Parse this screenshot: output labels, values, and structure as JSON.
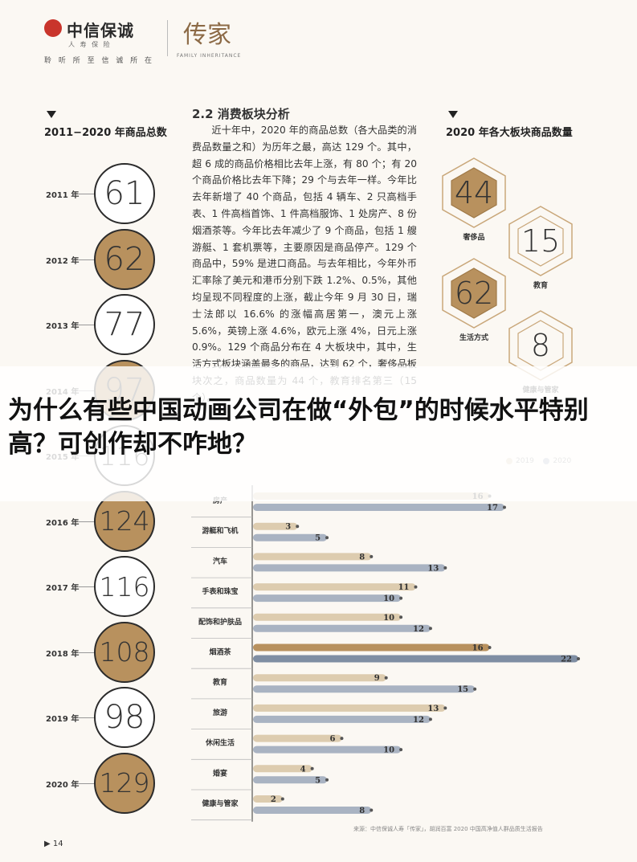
{
  "header": {
    "logo_name": "中信保诚",
    "logo_sub": "人 寿 保 险",
    "slogan": "聆 听 所 至   信 诚 所 在",
    "brand": "传家",
    "brand_sub": "FAMILY INHERITANCE"
  },
  "left_panel": {
    "title": "2011−2020 年商品总数",
    "years": [
      {
        "year": "2011 年",
        "value": "61",
        "gold": false
      },
      {
        "year": "2012 年",
        "value": "62",
        "gold": true
      },
      {
        "year": "2013 年",
        "value": "77",
        "gold": false
      },
      {
        "year": "2014 年",
        "value": "97",
        "gold": true
      },
      {
        "year": "2015 年",
        "value": "116",
        "gold": false
      },
      {
        "year": "2016 年",
        "value": "124",
        "gold": true
      },
      {
        "year": "2017 年",
        "value": "116",
        "gold": false
      },
      {
        "year": "2018 年",
        "value": "108",
        "gold": true
      },
      {
        "year": "2019 年",
        "value": "98",
        "gold": false
      },
      {
        "year": "2020 年",
        "value": "129",
        "gold": true
      }
    ]
  },
  "middle": {
    "section_title": "2.2 消费板块分析",
    "paragraph": "近十年中，2020 年的商品总数（各大品类的消费品数量之和）为历年之最，高达 129 个。其中，超 6 成的商品价格相比去年上涨，有 80 个；有 20 个商品价格比去年下降；29 个与去年一样。今年比去年新增了 40 个商品，包括 4 辆车、2 只高档手表、1 件高档首饰、1 件高档服饰、1 处房产、8 份烟酒茶等。今年比去年减少了 9 个商品，包括 1 艘游艇、1 套机票等，主要原因是商品停产。129 个商品中，59% 是进口商品。与去年相比，今年外币汇率除了美元和港币分别下跌 1.2%、0.5%，其他均呈现不同程度的上涨，截止今年 9 月 30 日，瑞士法郎以 16.6% 的涨幅高居第一，澳元上涨 5.6%，英镑上涨 4.6%，欧元上涨 4%，日元上涨 0.9%。129 个商品分布在 4 大板块中，其中，生活方式板块涵盖最多的商品，达到 62 个，奢侈品板块次之，商品数量为 44 个，教育排名第三（15 个）。"
  },
  "right_panel": {
    "title": "2020 年各大板块商品数量",
    "sectors": [
      {
        "value": "44",
        "label": "奢侈品",
        "gold": true
      },
      {
        "value": "15",
        "label": "教育",
        "gold": false
      },
      {
        "value": "62",
        "label": "生活方式",
        "gold": true
      },
      {
        "value": "8",
        "label": "健康与管家",
        "gold": false
      }
    ]
  },
  "overlay": {
    "headline": "为什么有些中国动画公司在做“外包”的时候水平特别高？可创作却不咋地？"
  },
  "chart_data": {
    "type": "bar",
    "title": "",
    "categories": [
      "房产",
      "游艇和飞机",
      "汽车",
      "手表和珠宝",
      "配饰和护肤品",
      "烟酒茶",
      "教育",
      "旅游",
      "休闲生活",
      "婚宴",
      "健康与管家"
    ],
    "series": [
      {
        "name": "2019",
        "values": [
          16,
          3,
          8,
          11,
          10,
          16,
          9,
          13,
          6,
          4,
          2
        ],
        "color": "#ddccaf",
        "highlight_color": "#b8915e"
      },
      {
        "name": "2020",
        "values": [
          17,
          5,
          13,
          10,
          12,
          22,
          15,
          12,
          10,
          5,
          8
        ],
        "color": "#a9b3c2",
        "highlight_color": "#7f8ea3"
      }
    ],
    "highlight_category": "烟酒茶",
    "xlim": [
      0,
      22
    ],
    "legend": "top-right"
  },
  "footer": {
    "source": "来源：中信保诚人寿「传家」，胡润百富 2020 中国高净值人群品质生活报告",
    "page": "▶ 14"
  }
}
